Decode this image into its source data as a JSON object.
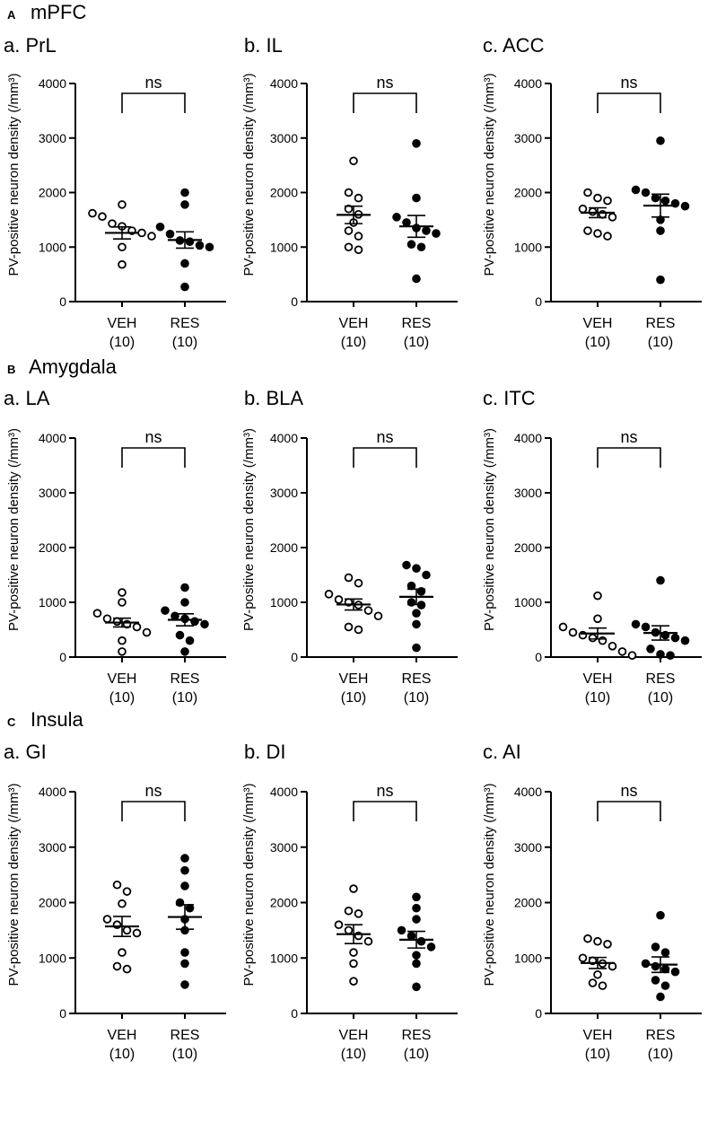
{
  "figure": {
    "sections": [
      {
        "letter": "A",
        "name": "mPFC"
      },
      {
        "letter": "B",
        "name": "Amygdala"
      },
      {
        "letter": "C",
        "name": "Insula"
      }
    ],
    "y_label": "PV-positive neuron density (/mm³)"
  },
  "chart_data": [
    {
      "type": "scatter",
      "panel": "a. PrL",
      "section": "mPFC",
      "ylim": [
        0,
        4000
      ],
      "yticks": [
        0,
        1000,
        2000,
        3000,
        4000
      ],
      "ylabel": "PV-positive neuron density (/mm³)",
      "significance": "ns",
      "groups": [
        {
          "name": "VEH",
          "n": "(10)",
          "fill": "open",
          "mean": 1260,
          "sem": 110,
          "values": [
            1780,
            1620,
            1560,
            1430,
            1380,
            1300,
            1260,
            1200,
            1000,
            680
          ]
        },
        {
          "name": "RES",
          "n": "(10)",
          "fill": "filled",
          "mean": 1130,
          "sem": 150,
          "values": [
            2000,
            1780,
            1370,
            1240,
            1120,
            1100,
            1030,
            700,
            270,
            1000
          ]
        }
      ]
    },
    {
      "type": "scatter",
      "panel": "b. IL",
      "section": "mPFC",
      "ylim": [
        0,
        4000
      ],
      "yticks": [
        0,
        1000,
        2000,
        3000,
        4000
      ],
      "ylabel": "PV-positive neuron density (/mm³)",
      "significance": "ns",
      "groups": [
        {
          "name": "VEH",
          "n": "(10)",
          "fill": "open",
          "mean": 1590,
          "sem": 160,
          "values": [
            2580,
            2000,
            1900,
            1700,
            1600,
            1450,
            1300,
            1200,
            1000,
            950
          ]
        },
        {
          "name": "RES",
          "n": "(10)",
          "fill": "filled",
          "mean": 1380,
          "sem": 200,
          "values": [
            2900,
            1900,
            1550,
            1450,
            1350,
            1300,
            1250,
            1050,
            1000,
            420
          ]
        }
      ]
    },
    {
      "type": "scatter",
      "panel": "c. ACC",
      "section": "mPFC",
      "ylim": [
        0,
        4000
      ],
      "yticks": [
        0,
        1000,
        2000,
        3000,
        4000
      ],
      "ylabel": "PV-positive neuron density (/mm³)",
      "significance": "ns",
      "groups": [
        {
          "name": "VEH",
          "n": "(10)",
          "fill": "open",
          "mean": 1630,
          "sem": 90,
          "values": [
            2000,
            1900,
            1850,
            1700,
            1650,
            1600,
            1550,
            1300,
            1250,
            1200
          ]
        },
        {
          "name": "RES",
          "n": "(10)",
          "fill": "filled",
          "mean": 1760,
          "sem": 210,
          "values": [
            2950,
            2050,
            2000,
            1900,
            1850,
            1800,
            1750,
            1500,
            1300,
            400
          ]
        }
      ]
    },
    {
      "type": "scatter",
      "panel": "a. LA",
      "section": "Amygdala",
      "ylim": [
        0,
        4000
      ],
      "yticks": [
        0,
        1000,
        2000,
        3000,
        4000
      ],
      "ylabel": "PV-positive neuron density (/mm³)",
      "significance": "ns",
      "groups": [
        {
          "name": "VEH",
          "n": "(10)",
          "fill": "open",
          "mean": 630,
          "sem": 80,
          "values": [
            1180,
            1000,
            800,
            700,
            650,
            600,
            550,
            450,
            300,
            100
          ]
        },
        {
          "name": "RES",
          "n": "(10)",
          "fill": "filled",
          "mean": 680,
          "sem": 110,
          "values": [
            1270,
            1000,
            850,
            750,
            700,
            650,
            600,
            400,
            300,
            100
          ]
        }
      ]
    },
    {
      "type": "scatter",
      "panel": "b. BLA",
      "section": "Amygdala",
      "ylim": [
        0,
        4000
      ],
      "yticks": [
        0,
        1000,
        2000,
        3000,
        4000
      ],
      "ylabel": "PV-positive neuron density (/mm³)",
      "significance": "ns",
      "groups": [
        {
          "name": "VEH",
          "n": "(10)",
          "fill": "open",
          "mean": 960,
          "sem": 100,
          "values": [
            1450,
            1350,
            1150,
            1050,
            1000,
            950,
            850,
            750,
            550,
            500
          ]
        },
        {
          "name": "RES",
          "n": "(10)",
          "fill": "filled",
          "mean": 1100,
          "sem": 140,
          "values": [
            1680,
            1620,
            1500,
            1300,
            1200,
            1000,
            950,
            800,
            600,
            170
          ]
        }
      ]
    },
    {
      "type": "scatter",
      "panel": "c. ITC",
      "section": "Amygdala",
      "ylim": [
        0,
        4000
      ],
      "yticks": [
        0,
        1000,
        2000,
        3000,
        4000
      ],
      "ylabel": "PV-positive neuron density (/mm³)",
      "significance": "ns",
      "groups": [
        {
          "name": "VEH",
          "n": "(10)",
          "fill": "open",
          "mean": 430,
          "sem": 100,
          "values": [
            1120,
            700,
            550,
            450,
            400,
            350,
            300,
            200,
            100,
            30
          ]
        },
        {
          "name": "RES",
          "n": "(10)",
          "fill": "filled",
          "mean": 440,
          "sem": 130,
          "values": [
            1400,
            600,
            550,
            450,
            400,
            350,
            300,
            150,
            50,
            30
          ]
        }
      ]
    },
    {
      "type": "scatter",
      "panel": "a. GI",
      "section": "Insula",
      "ylim": [
        0,
        4000
      ],
      "yticks": [
        0,
        1000,
        2000,
        3000,
        4000
      ],
      "ylabel": "PV-positive neuron density (/mm³)",
      "significance": "ns",
      "groups": [
        {
          "name": "VEH",
          "n": "(10)",
          "fill": "open",
          "mean": 1570,
          "sem": 180,
          "values": [
            2320,
            2200,
            1980,
            1700,
            1600,
            1500,
            1450,
            1100,
            850,
            800
          ]
        },
        {
          "name": "RES",
          "n": "(10)",
          "fill": "filled",
          "mean": 1740,
          "sem": 220,
          "values": [
            2800,
            2580,
            2300,
            2000,
            1900,
            1700,
            1500,
            1100,
            900,
            520
          ]
        }
      ]
    },
    {
      "type": "scatter",
      "panel": "b. DI",
      "section": "Insula",
      "ylim": [
        0,
        4000
      ],
      "yticks": [
        0,
        1000,
        2000,
        3000,
        4000
      ],
      "ylabel": "PV-positive neuron density (/mm³)",
      "significance": "ns",
      "groups": [
        {
          "name": "VEH",
          "n": "(10)",
          "fill": "open",
          "mean": 1430,
          "sem": 170,
          "values": [
            2250,
            1850,
            1800,
            1600,
            1500,
            1400,
            1300,
            1100,
            900,
            580
          ]
        },
        {
          "name": "RES",
          "n": "(10)",
          "fill": "filled",
          "mean": 1330,
          "sem": 150,
          "values": [
            2100,
            1900,
            1700,
            1500,
            1400,
            1300,
            1200,
            1050,
            900,
            480
          ]
        }
      ]
    },
    {
      "type": "scatter",
      "panel": "c. AI",
      "section": "Insula",
      "ylim": [
        0,
        4000
      ],
      "yticks": [
        0,
        1000,
        2000,
        3000,
        4000
      ],
      "ylabel": "PV-positive neuron density (/mm³)",
      "significance": "ns",
      "groups": [
        {
          "name": "VEH",
          "n": "(10)",
          "fill": "open",
          "mean": 910,
          "sem": 100,
          "values": [
            1350,
            1300,
            1250,
            1000,
            950,
            900,
            850,
            700,
            550,
            500
          ]
        },
        {
          "name": "RES",
          "n": "(10)",
          "fill": "filled",
          "mean": 880,
          "sem": 140,
          "values": [
            1770,
            1200,
            1100,
            900,
            850,
            800,
            750,
            600,
            500,
            300
          ]
        }
      ]
    }
  ]
}
